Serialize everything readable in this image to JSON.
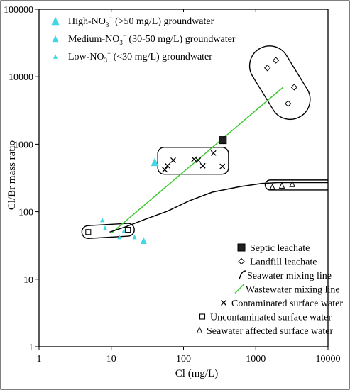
{
  "chart_data": {
    "type": "scatter",
    "xlabel": "Cl (mg/L)",
    "ylabel": "Cl/Br mass ratio",
    "x_scale": "log",
    "y_scale": "log",
    "xlim": [
      1,
      10000
    ],
    "ylim": [
      1,
      100000
    ],
    "x_ticks": [
      "1",
      "10",
      "100",
      "1000",
      "10000"
    ],
    "y_ticks": [
      "1",
      "10",
      "100",
      "1000",
      "10000",
      "100000"
    ],
    "grid": false,
    "colors": {
      "triangle": "#3fd7e6",
      "wastewater_line": "#3ec832",
      "seawater_line": "#000000",
      "open_marker": "#000000",
      "septic_fill": "#202020"
    },
    "legend_top": [
      {
        "id": "high",
        "html": "High-NO<tspan baseline-shift=\"-4\" font-size=\"9\">3</tspan><tspan baseline-shift=\"6\" font-size=\"9\">−</tspan> (&gt;50 mg/L) groundwater"
      },
      {
        "id": "medium",
        "html": "Medium-NO<tspan baseline-shift=\"-4\" font-size=\"9\">3</tspan><tspan baseline-shift=\"6\" font-size=\"9\">−</tspan> (30-50 mg/L) groundwater"
      },
      {
        "id": "low",
        "html": "Low-NO<tspan baseline-shift=\"-4\" font-size=\"9\">3</tspan><tspan baseline-shift=\"6\" font-size=\"9\">−</tspan> (&lt;30 mg/L) groundwater"
      }
    ],
    "legend_top_text": [
      "High-NO3− (>50 mg/L) groundwater",
      "Medium-NO3− (30-50 mg/L) groundwater",
      "Low-NO3− (<30 mg/L) groundwater"
    ],
    "legend_bottom": [
      {
        "id": "septic",
        "label": "Septic leachate"
      },
      {
        "id": "landfill",
        "label": "Landfill leachate"
      },
      {
        "id": "seawater-line",
        "label": "Seawater mixing line"
      },
      {
        "id": "wastewater-line",
        "label": "Wastewater mixing line"
      },
      {
        "id": "contaminated",
        "label": "Contaminated surface water"
      },
      {
        "id": "uncontaminated",
        "label": "Uncontaminated surface water"
      },
      {
        "id": "seawater-affected",
        "label": "Seawater affected surface water"
      }
    ],
    "series": [
      {
        "name": "High-NO3− (>50 mg/L) groundwater",
        "marker": "triangle",
        "size": "large",
        "points": [
          [
            40,
            540
          ]
        ]
      },
      {
        "name": "Medium-NO3− (30-50 mg/L) groundwater",
        "marker": "triangle",
        "size": "medium",
        "points": [
          [
            28,
            37
          ]
        ]
      },
      {
        "name": "Low-NO3− (<30 mg/L) groundwater",
        "marker": "triangle",
        "size": "small",
        "points": [
          [
            7.5,
            75
          ],
          [
            8.2,
            57
          ],
          [
            13,
            42
          ],
          [
            15,
            52
          ],
          [
            21,
            42
          ]
        ]
      },
      {
        "name": "Septic leachate",
        "marker": "square-filled",
        "points": [
          [
            350,
            1150
          ]
        ]
      },
      {
        "name": "Landfill leachate",
        "marker": "diamond",
        "points": [
          [
            1450,
            13500
          ],
          [
            1900,
            17500
          ],
          [
            2800,
            4000
          ],
          [
            3400,
            7000
          ]
        ]
      },
      {
        "name": "Contaminated surface water",
        "marker": "x",
        "points": [
          [
            55,
            420
          ],
          [
            60,
            480
          ],
          [
            72,
            580
          ],
          [
            140,
            600
          ],
          [
            160,
            580
          ],
          [
            185,
            480
          ],
          [
            260,
            740
          ],
          [
            345,
            470
          ]
        ]
      },
      {
        "name": "Uncontaminated surface water",
        "marker": "square-open",
        "points": [
          [
            4.8,
            50
          ],
          [
            17,
            54
          ]
        ]
      },
      {
        "name": "Seawater affected surface water",
        "marker": "triangle-open",
        "points": [
          [
            1700,
            230
          ],
          [
            2300,
            242
          ],
          [
            3200,
            255
          ]
        ]
      }
    ],
    "lines": [
      {
        "name": "Wastewater mixing line",
        "points": [
          [
            10,
            48
          ],
          [
            2400,
            7000
          ]
        ]
      },
      {
        "name": "Seawater mixing line",
        "points": [
          [
            9.5,
            50
          ],
          [
            16,
            60
          ],
          [
            30,
            78
          ],
          [
            60,
            102
          ],
          [
            120,
            145
          ],
          [
            250,
            195
          ],
          [
            600,
            235
          ],
          [
            1200,
            262
          ],
          [
            2000,
            270
          ],
          [
            10000,
            270
          ]
        ]
      }
    ],
    "enclosures": [
      {
        "name": "uncontaminated",
        "kind": "capsule",
        "a": [
          4.8,
          50
        ],
        "b": [
          17,
          54
        ],
        "thick": 12
      },
      {
        "name": "contaminated",
        "kind": "rounded-rect",
        "x": [
          44,
          420
        ],
        "y": [
          360,
          900
        ]
      },
      {
        "name": "landfill",
        "kind": "capsule",
        "a": [
          1550,
          14500
        ],
        "b": [
          3000,
          4600
        ],
        "thick": 50
      },
      {
        "name": "seawater-affected",
        "kind": "open-capsule",
        "x": [
          1350,
          10000
        ],
        "y": [
          210,
          295
        ]
      }
    ]
  }
}
